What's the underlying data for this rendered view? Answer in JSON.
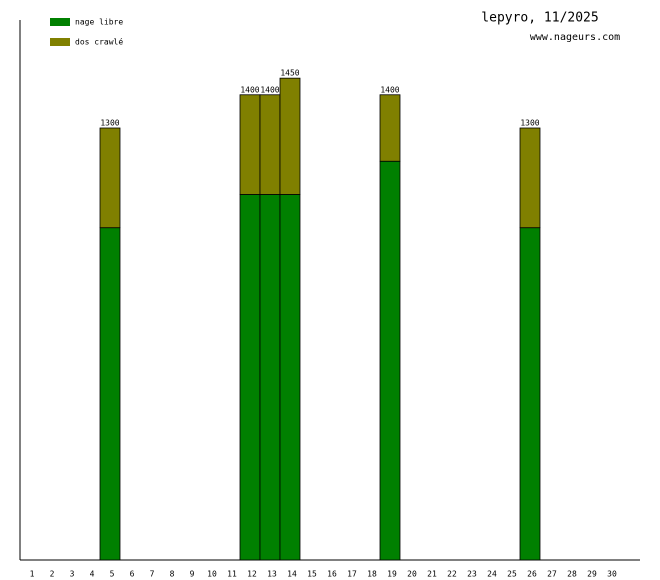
{
  "chart_data": {
    "type": "stacked-bar",
    "title": "lepyro, 11/2025",
    "subtitle": "www.nageurs.com",
    "categories": [
      "1",
      "2",
      "3",
      "4",
      "5",
      "6",
      "7",
      "8",
      "9",
      "10",
      "11",
      "12",
      "13",
      "14",
      "15",
      "16",
      "17",
      "18",
      "19",
      "20",
      "21",
      "22",
      "23",
      "24",
      "25",
      "26",
      "27",
      "28",
      "29",
      "30"
    ],
    "series": [
      {
        "name": "nage libre",
        "color": "#008000",
        "values": [
          null,
          null,
          null,
          null,
          1000,
          null,
          null,
          null,
          null,
          null,
          null,
          1100,
          1100,
          1100,
          null,
          null,
          null,
          null,
          1200,
          null,
          null,
          null,
          null,
          null,
          null,
          1000,
          null,
          null,
          null,
          null
        ]
      },
      {
        "name": "dos crawlé",
        "color": "#808000",
        "values": [
          null,
          null,
          null,
          null,
          300,
          null,
          null,
          null,
          null,
          null,
          null,
          300,
          300,
          350,
          null,
          null,
          null,
          null,
          200,
          null,
          null,
          null,
          null,
          null,
          null,
          300,
          null,
          null,
          null,
          null
        ]
      }
    ],
    "totals": [
      null,
      null,
      null,
      null,
      1300,
      null,
      null,
      null,
      null,
      null,
      null,
      1400,
      1400,
      1450,
      null,
      null,
      null,
      null,
      1400,
      null,
      null,
      null,
      null,
      null,
      null,
      1300,
      null,
      null,
      null,
      null
    ],
    "ylim": [
      0,
      1625
    ]
  }
}
